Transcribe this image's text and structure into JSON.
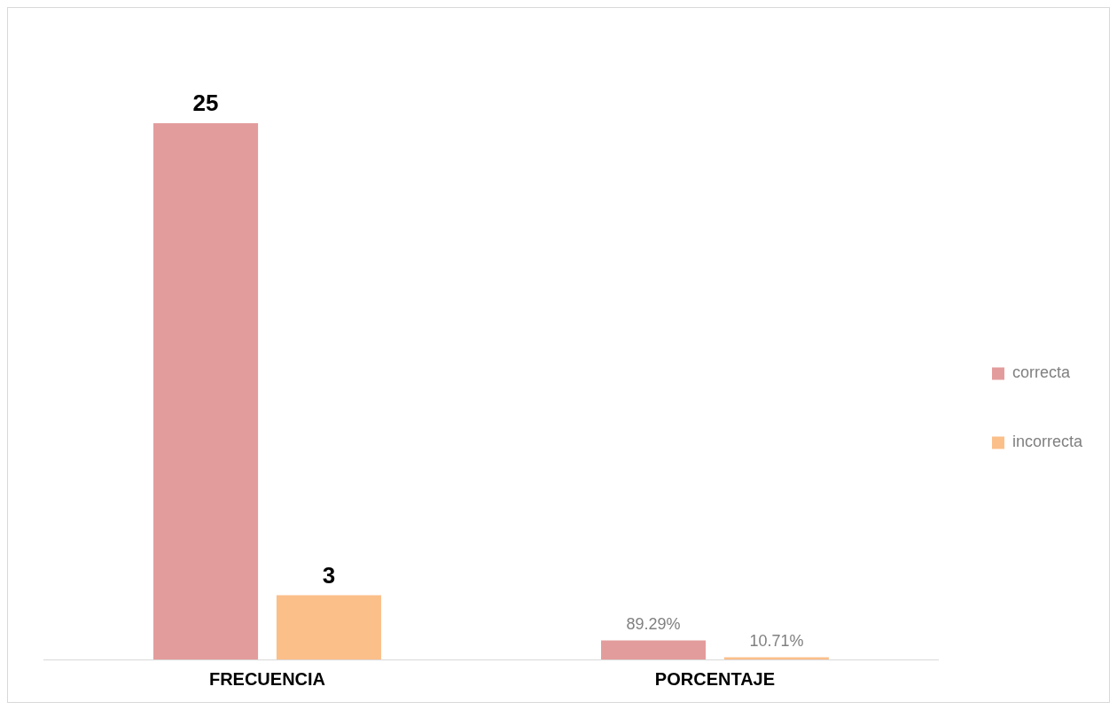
{
  "chart_data": {
    "type": "bar",
    "categories": [
      "FRECUENCIA",
      "PORCENTAJE"
    ],
    "series": [
      {
        "name": "correcta",
        "color": "#e39c9c",
        "values": [
          25,
          0.8929
        ],
        "value_labels": [
          "25",
          "89.29%"
        ]
      },
      {
        "name": "incorrecta",
        "color": "#fbbf8a",
        "values": [
          3,
          0.1071
        ],
        "value_labels": [
          "3",
          "10.71%"
        ]
      }
    ],
    "legend": "right",
    "grid": false
  }
}
